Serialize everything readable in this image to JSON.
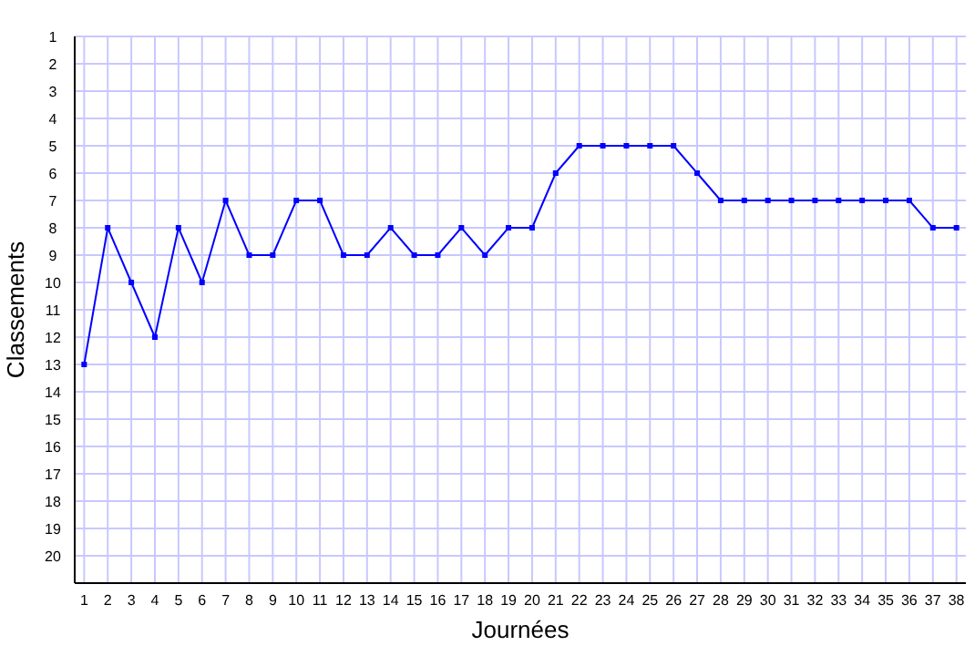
{
  "chart_data": {
    "type": "line",
    "xlabel": "Journées",
    "ylabel": "Classements",
    "x": [
      1,
      2,
      3,
      4,
      5,
      6,
      7,
      8,
      9,
      10,
      11,
      12,
      13,
      14,
      15,
      16,
      17,
      18,
      19,
      20,
      21,
      22,
      23,
      24,
      25,
      26,
      27,
      28,
      29,
      30,
      31,
      32,
      33,
      34,
      35,
      36,
      37,
      38
    ],
    "series": [
      {
        "color": "#0000ff",
        "values": [
          13,
          8,
          10,
          12,
          8,
          10,
          7,
          9,
          9,
          7,
          7,
          9,
          9,
          8,
          9,
          9,
          8,
          9,
          8,
          8,
          6,
          5,
          5,
          5,
          5,
          5,
          6,
          7,
          7,
          7,
          7,
          7,
          7,
          7,
          7,
          7,
          8,
          8
        ]
      }
    ],
    "xlim": [
      0.6,
      38.4
    ],
    "xticks": [
      1,
      2,
      3,
      4,
      5,
      6,
      7,
      8,
      9,
      10,
      11,
      12,
      13,
      14,
      15,
      16,
      17,
      18,
      19,
      20,
      21,
      22,
      23,
      24,
      25,
      26,
      27,
      28,
      29,
      30,
      31,
      32,
      33,
      34,
      35,
      36,
      37,
      38
    ],
    "ylim": [
      21,
      1
    ],
    "yticks": [
      1,
      2,
      3,
      4,
      5,
      6,
      7,
      8,
      9,
      10,
      11,
      12,
      13,
      14,
      15,
      16,
      17,
      18,
      19,
      20
    ],
    "grid": true,
    "marker": "square",
    "line_style": "solid"
  }
}
